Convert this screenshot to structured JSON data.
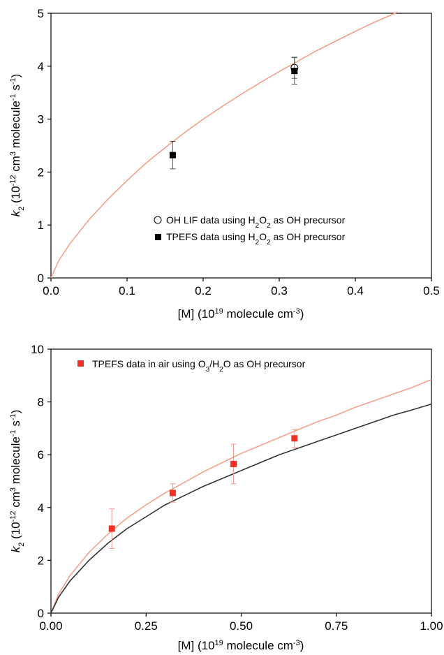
{
  "chart_data": [
    {
      "type": "scatter",
      "xlabel": "[M] (10^19 molecule cm^-3)",
      "ylabel": "k2 (10^-12 cm^3 molecule^-1 s^-1)",
      "xlim": [
        0,
        0.5
      ],
      "ylim": [
        0,
        5
      ],
      "x_ticks": [
        "0.0",
        "0.1",
        "0.2",
        "0.3",
        "0.4",
        "0.5"
      ],
      "y_ticks": [
        "0",
        "1",
        "2",
        "3",
        "4",
        "5"
      ],
      "legend": {
        "placement": "center-right"
      },
      "series": [
        {
          "name": "OH LIF data using H2O2 as OH precursor",
          "marker": "open-circle",
          "color": "#000000",
          "points": [
            {
              "x": 0.32,
              "y": 3.97,
              "err": 0.2
            }
          ]
        },
        {
          "name": "TPEFS data using H2O2 as OH precursor",
          "marker": "filled-square",
          "color": "#000000",
          "points": [
            {
              "x": 0.16,
              "y": 2.32,
              "err": 0.26
            },
            {
              "x": 0.32,
              "y": 3.91,
              "err": 0.25
            }
          ]
        }
      ],
      "fit_curves": [
        {
          "color": "#f4a08a",
          "points": [
            [
              0,
              0
            ],
            [
              0.01,
              0.32
            ],
            [
              0.025,
              0.65
            ],
            [
              0.05,
              1.1
            ],
            [
              0.075,
              1.49
            ],
            [
              0.1,
              1.84
            ],
            [
              0.125,
              2.17
            ],
            [
              0.15,
              2.46
            ],
            [
              0.175,
              2.74
            ],
            [
              0.2,
              3.0
            ],
            [
              0.225,
              3.24
            ],
            [
              0.25,
              3.47
            ],
            [
              0.275,
              3.69
            ],
            [
              0.3,
              3.9
            ],
            [
              0.325,
              4.1
            ],
            [
              0.35,
              4.3
            ],
            [
              0.375,
              4.48
            ],
            [
              0.4,
              4.66
            ],
            [
              0.425,
              4.83
            ],
            [
              0.455,
              5.02
            ]
          ]
        }
      ]
    },
    {
      "type": "scatter",
      "xlabel": "[M] (10^19 molecule cm^-3)",
      "ylabel": "k2 (10^-12 cm^3 molecule^-1 s^-1)",
      "xlim": [
        0,
        1
      ],
      "ylim": [
        0,
        10
      ],
      "x_ticks": [
        "0.00",
        "0.25",
        "0.50",
        "0.75",
        "1.00"
      ],
      "y_ticks": [
        "0",
        "2",
        "4",
        "6",
        "8",
        "10"
      ],
      "legend": {
        "placement": "top-left"
      },
      "series": [
        {
          "name": "TPEFS data in air using O3/H2O as OH precursor",
          "marker": "filled-square",
          "color": "#ee3124",
          "points": [
            {
              "x": 0.16,
              "y": 3.2,
              "err": 0.75
            },
            {
              "x": 0.32,
              "y": 4.55,
              "err": 0.35
            },
            {
              "x": 0.48,
              "y": 5.65,
              "err": 0.75
            },
            {
              "x": 0.64,
              "y": 6.62,
              "err": 0.35
            }
          ]
        }
      ],
      "fit_curves": [
        {
          "color": "#f4a08a",
          "points": [
            [
              0,
              0
            ],
            [
              0.02,
              0.72
            ],
            [
              0.05,
              1.42
            ],
            [
              0.1,
              2.3
            ],
            [
              0.15,
              3.0
            ],
            [
              0.2,
              3.6
            ],
            [
              0.25,
              4.1
            ],
            [
              0.3,
              4.55
            ],
            [
              0.35,
              4.95
            ],
            [
              0.4,
              5.35
            ],
            [
              0.45,
              5.7
            ],
            [
              0.5,
              6.05
            ],
            [
              0.55,
              6.35
            ],
            [
              0.6,
              6.65
            ],
            [
              0.65,
              6.95
            ],
            [
              0.7,
              7.25
            ],
            [
              0.75,
              7.5
            ],
            [
              0.8,
              7.8
            ],
            [
              0.85,
              8.05
            ],
            [
              0.9,
              8.3
            ],
            [
              0.95,
              8.55
            ],
            [
              1.0,
              8.85
            ]
          ]
        },
        {
          "color": "#333333",
          "points": [
            [
              0,
              0
            ],
            [
              0.02,
              0.6
            ],
            [
              0.05,
              1.22
            ],
            [
              0.1,
              2.0
            ],
            [
              0.15,
              2.65
            ],
            [
              0.2,
              3.2
            ],
            [
              0.25,
              3.65
            ],
            [
              0.3,
              4.1
            ],
            [
              0.35,
              4.45
            ],
            [
              0.4,
              4.8
            ],
            [
              0.45,
              5.1
            ],
            [
              0.5,
              5.4
            ],
            [
              0.55,
              5.7
            ],
            [
              0.6,
              6.0
            ],
            [
              0.65,
              6.25
            ],
            [
              0.7,
              6.5
            ],
            [
              0.75,
              6.75
            ],
            [
              0.8,
              7.0
            ],
            [
              0.85,
              7.25
            ],
            [
              0.9,
              7.5
            ],
            [
              0.95,
              7.7
            ],
            [
              1.0,
              7.92
            ]
          ]
        }
      ]
    }
  ]
}
